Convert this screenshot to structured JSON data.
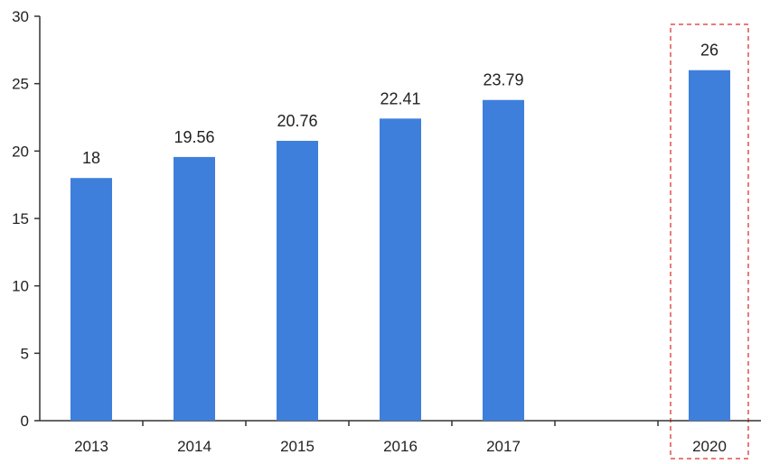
{
  "chart_data": {
    "type": "bar",
    "categories": [
      "2013",
      "2014",
      "2015",
      "2016",
      "2017",
      "",
      "2020"
    ],
    "values": [
      18,
      19.56,
      20.76,
      22.41,
      23.79,
      null,
      26
    ],
    "data_labels": [
      "18",
      "19.56",
      "20.76",
      "22.41",
      "23.79",
      "",
      "26"
    ],
    "title": "",
    "xlabel": "",
    "ylabel": "",
    "ylim": [
      0,
      30
    ],
    "yticks": [
      0,
      5,
      10,
      15,
      20,
      25,
      30
    ],
    "grid": false,
    "highlight_category": "2020",
    "colors": {
      "bar": "#3f7fdc",
      "axis": "#333333",
      "highlight_box": "#e0504a"
    }
  }
}
